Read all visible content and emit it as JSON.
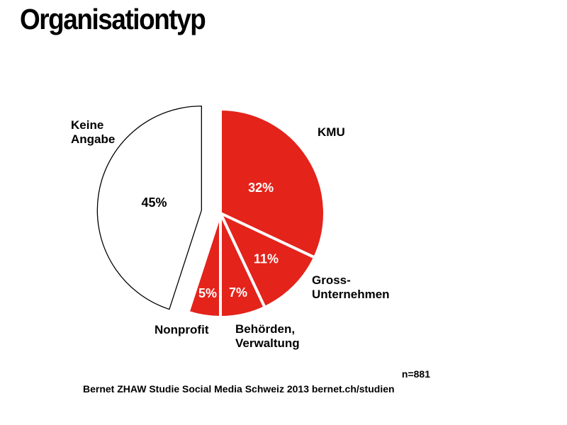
{
  "chart_data": {
    "type": "pie",
    "title": "Organisationtyp",
    "slices": [
      {
        "label": "KMU",
        "label_lines": [
          "KMU"
        ],
        "value": 32,
        "value_label": "32%",
        "color": "#e4231b",
        "exploded": false
      },
      {
        "label": "Gross-Unternehmen",
        "label_lines": [
          "Gross-",
          "Unternehmen"
        ],
        "value": 11,
        "value_label": "11%",
        "color": "#e4231b",
        "exploded": false
      },
      {
        "label": "Behörden, Verwaltung",
        "label_lines": [
          "Behörden,",
          "Verwaltung"
        ],
        "value": 7,
        "value_label": "7%",
        "color": "#e4231b",
        "exploded": false
      },
      {
        "label": "Nonprofit",
        "label_lines": [
          "Nonprofit"
        ],
        "value": 5,
        "value_label": "5%",
        "color": "#e4231b",
        "exploded": false
      },
      {
        "label": "Keine Angabe",
        "label_lines": [
          "Keine",
          "Angabe"
        ],
        "value": 45,
        "value_label": "45%",
        "color": "#ffffff",
        "exploded": true
      }
    ],
    "sample_size": "n=881",
    "source": "Bernet ZHAW Studie Social Media Schweiz 2013 bernet.ch/studien"
  }
}
